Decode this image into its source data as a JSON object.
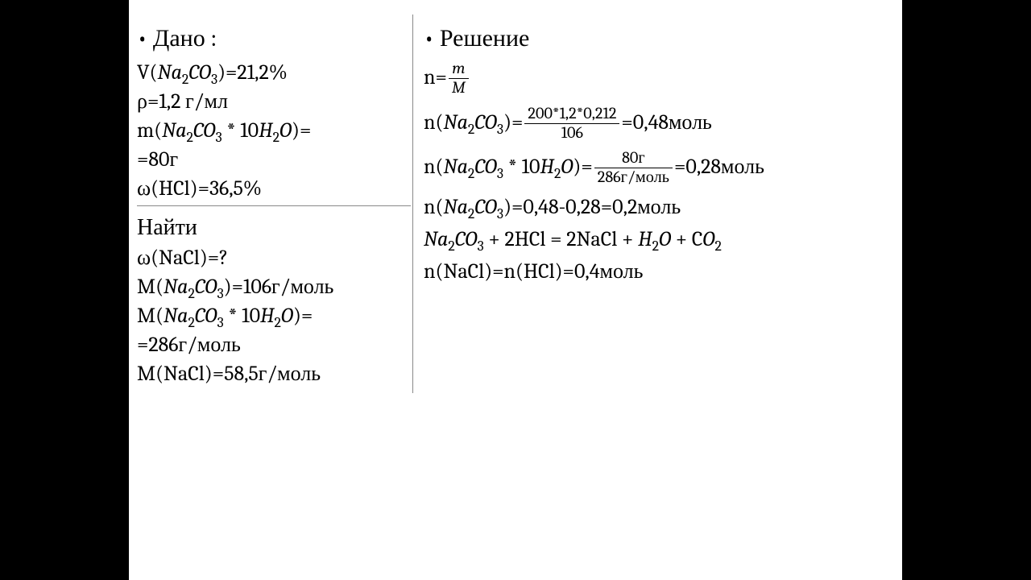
{
  "given": {
    "header": "Дано :",
    "l1_pre": "V(",
    "l1_chem_a": "Na",
    "l1_chem_b": "CO",
    "l1_post": ")=21,2%",
    "l2": "ρ=1,2 г/мл",
    "l3_pre": "m(",
    "l3_chem_a": "Na",
    "l3_chem_b": "CO",
    "l3_mid": " * 10",
    "l3_chem_c": "H",
    "l3_chem_d": "O",
    "l3_post": ")=",
    "l4": "=80г",
    "l5": "ω(HCl)=36,5%"
  },
  "find": {
    "header": "Найти",
    "f1": "ω(NaCl)=?",
    "f2_pre": "M(",
    "f2_na": "Na",
    "f2_co": "CO",
    "f2_post": ")=106г/моль",
    "f3_pre": "M(",
    "f3_na": "Na",
    "f3_co": "CO",
    "f3_mid": " * 10",
    "f3_h": "H",
    "f3_o": "O",
    "f3_post": ")=",
    "f4": "=286г/моль",
    "f5": "M(NaCl)=58,5г/моль"
  },
  "solution": {
    "header": "Решение",
    "s1_pre": "n=",
    "s1_num": "m",
    "s1_den": "M",
    "s2_pre": "n(",
    "s2_na": "Na",
    "s2_co": "CO",
    "s2_mid": ")=",
    "s2_num": "200*1,2*0,212",
    "s2_den": "106",
    "s2_post": "=0,48моль",
    "s3_pre": "n(",
    "s3_na": "Na",
    "s3_co": "CO",
    "s3_mid1": " * 10",
    "s3_h": "H",
    "s3_o": "O",
    "s3_mid2": ")=",
    "s3_num": "80г",
    "s3_den": "286г/моль",
    "s3_post": "=0,28моль",
    "s4_pre": "n(",
    "s4_na": "Na",
    "s4_co": "CO",
    "s4_post": ")=0,48-0,28=0,2моль",
    "s5_na": "Na",
    "s5_co": "CO",
    "s5_mid1": " + 2HCl = 2NaCl + ",
    "s5_h": "H",
    "s5_o": "O",
    "s5_mid2": " + C",
    "s5_o2": "O",
    "s6": "n(NaCl)=n(HCl)=0,4моль"
  },
  "sub2": "2",
  "sub3": "3"
}
